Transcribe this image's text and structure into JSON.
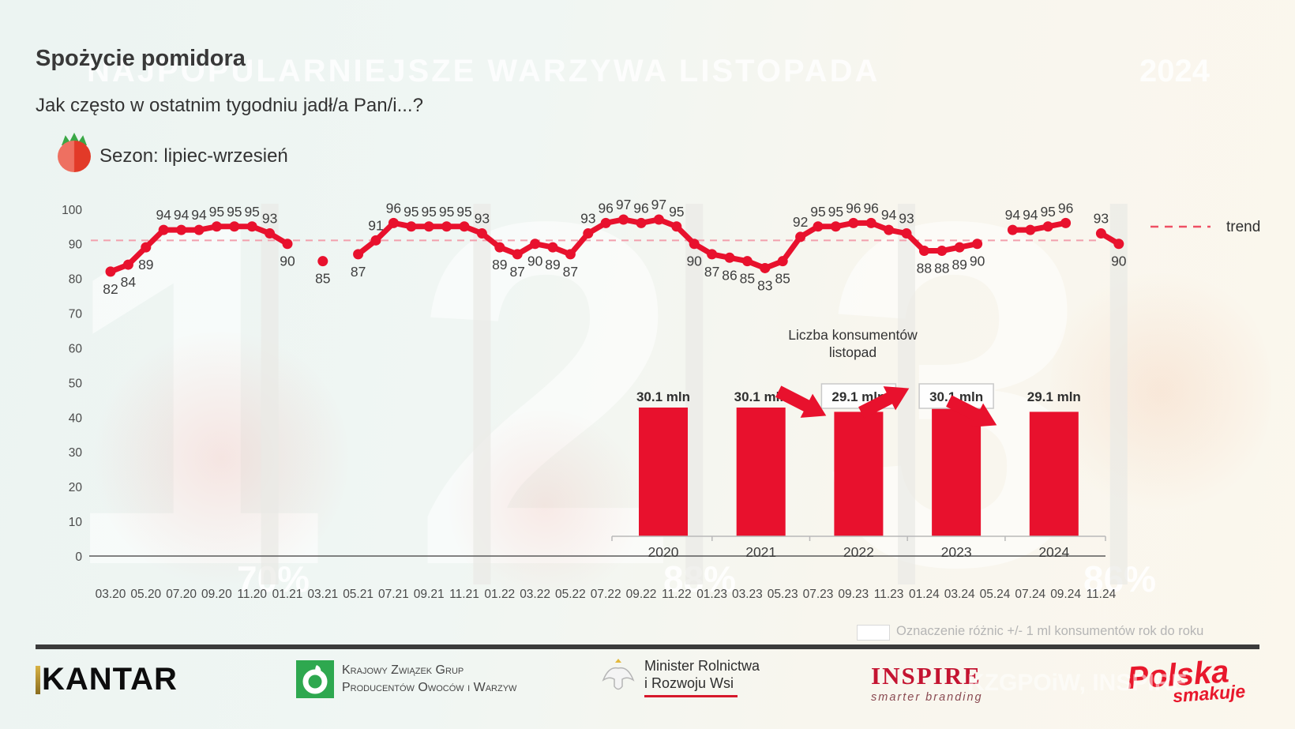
{
  "header": {
    "title": "Spożycie pomidora",
    "subtitle": "Jak często w ostatnim tygodniu jadł/a Pan/i...?",
    "season": "Sezon: lipiec-wrzesień"
  },
  "watermarks": {
    "headline": "NAJPOPULARNIEJSZE WARZYWA LISTOPADA",
    "year": "2024",
    "numerals": [
      "1",
      "2",
      "3"
    ],
    "percentages": [
      "70%",
      "88%",
      "86%"
    ],
    "footer_ghost": "KZGPOiW, INSPIRE"
  },
  "chart_data": [
    {
      "type": "line",
      "color": "#e8112d",
      "ylim": [
        0,
        100
      ],
      "y_ticks": [
        100,
        90,
        80,
        70,
        60,
        50,
        40,
        30,
        20,
        10,
        0
      ],
      "x_tick_labels": [
        "03.20",
        "05.20",
        "07.20",
        "09.20",
        "11.20",
        "01.21",
        "03.21",
        "05.21",
        "07.21",
        "09.21",
        "11.21",
        "01.22",
        "03.22",
        "05.22",
        "07.22",
        "09.22",
        "11.22",
        "01.23",
        "03.23",
        "05.23",
        "07.23",
        "09.23",
        "11.23",
        "01.24",
        "03.24",
        "05.24",
        "07.24",
        "09.24",
        "11.24"
      ],
      "slots": 58,
      "highlight_band_slots": [
        9,
        21,
        33,
        45,
        57
      ],
      "trend": {
        "label": "trend",
        "value": 91,
        "style": "dashed"
      },
      "segments": [
        {
          "start_slot": 0,
          "values": [
            82,
            84,
            89,
            94,
            94,
            94,
            95,
            95,
            95,
            93,
            90
          ]
        },
        {
          "start_slot": 12,
          "values": [
            85
          ]
        },
        {
          "start_slot": 14,
          "values": [
            87,
            91,
            96,
            95,
            95,
            95,
            95,
            93,
            89,
            87,
            90,
            89,
            87,
            93,
            96,
            97,
            96,
            97,
            95,
            90,
            87,
            86,
            85,
            83,
            85,
            92,
            95,
            95,
            96,
            96,
            94,
            93,
            88,
            88,
            89,
            90
          ]
        },
        {
          "start_slot": 51,
          "values": [
            94,
            94,
            95,
            96
          ]
        },
        {
          "start_slot": 56,
          "values": [
            93,
            90
          ]
        }
      ]
    },
    {
      "type": "bar",
      "title": "Liczba konsumentów",
      "subtitle": "listopad",
      "color": "#e8112d",
      "categories": [
        "2020",
        "2021",
        "2022",
        "2023",
        "2024"
      ],
      "values": [
        30.1,
        30.1,
        29.1,
        30.1,
        29.1
      ],
      "labels": [
        "30.1 mln",
        "30.1 mln",
        "29.1 mln",
        "30.1 mln",
        "29.1 mln"
      ],
      "boxed": [
        false,
        false,
        true,
        true,
        false
      ],
      "arrows": [
        {
          "from": "2021",
          "to": "2022",
          "direction": "down-right"
        },
        {
          "from": "2022",
          "to": "2023",
          "direction": "up-right"
        },
        {
          "from": "2023",
          "to": "2024",
          "direction": "down-right"
        }
      ]
    }
  ],
  "legend_note": {
    "text": "Oznaczenie różnic +/- 1 ml konsumentów rok do roku"
  },
  "footer": {
    "kantar": "KANTAR",
    "kzgp_line1": "Krajowy Związek Grup",
    "kzgp_line2": "Producentów Owoców i Warzyw",
    "minister_line1": "Minister Rolnictwa",
    "minister_line2": "i Rozwoju Wsi",
    "inspire": "INSPIRE",
    "inspire_tagline": "smarter branding",
    "polska_line1": "Polska",
    "polska_line2": "smakuje"
  }
}
